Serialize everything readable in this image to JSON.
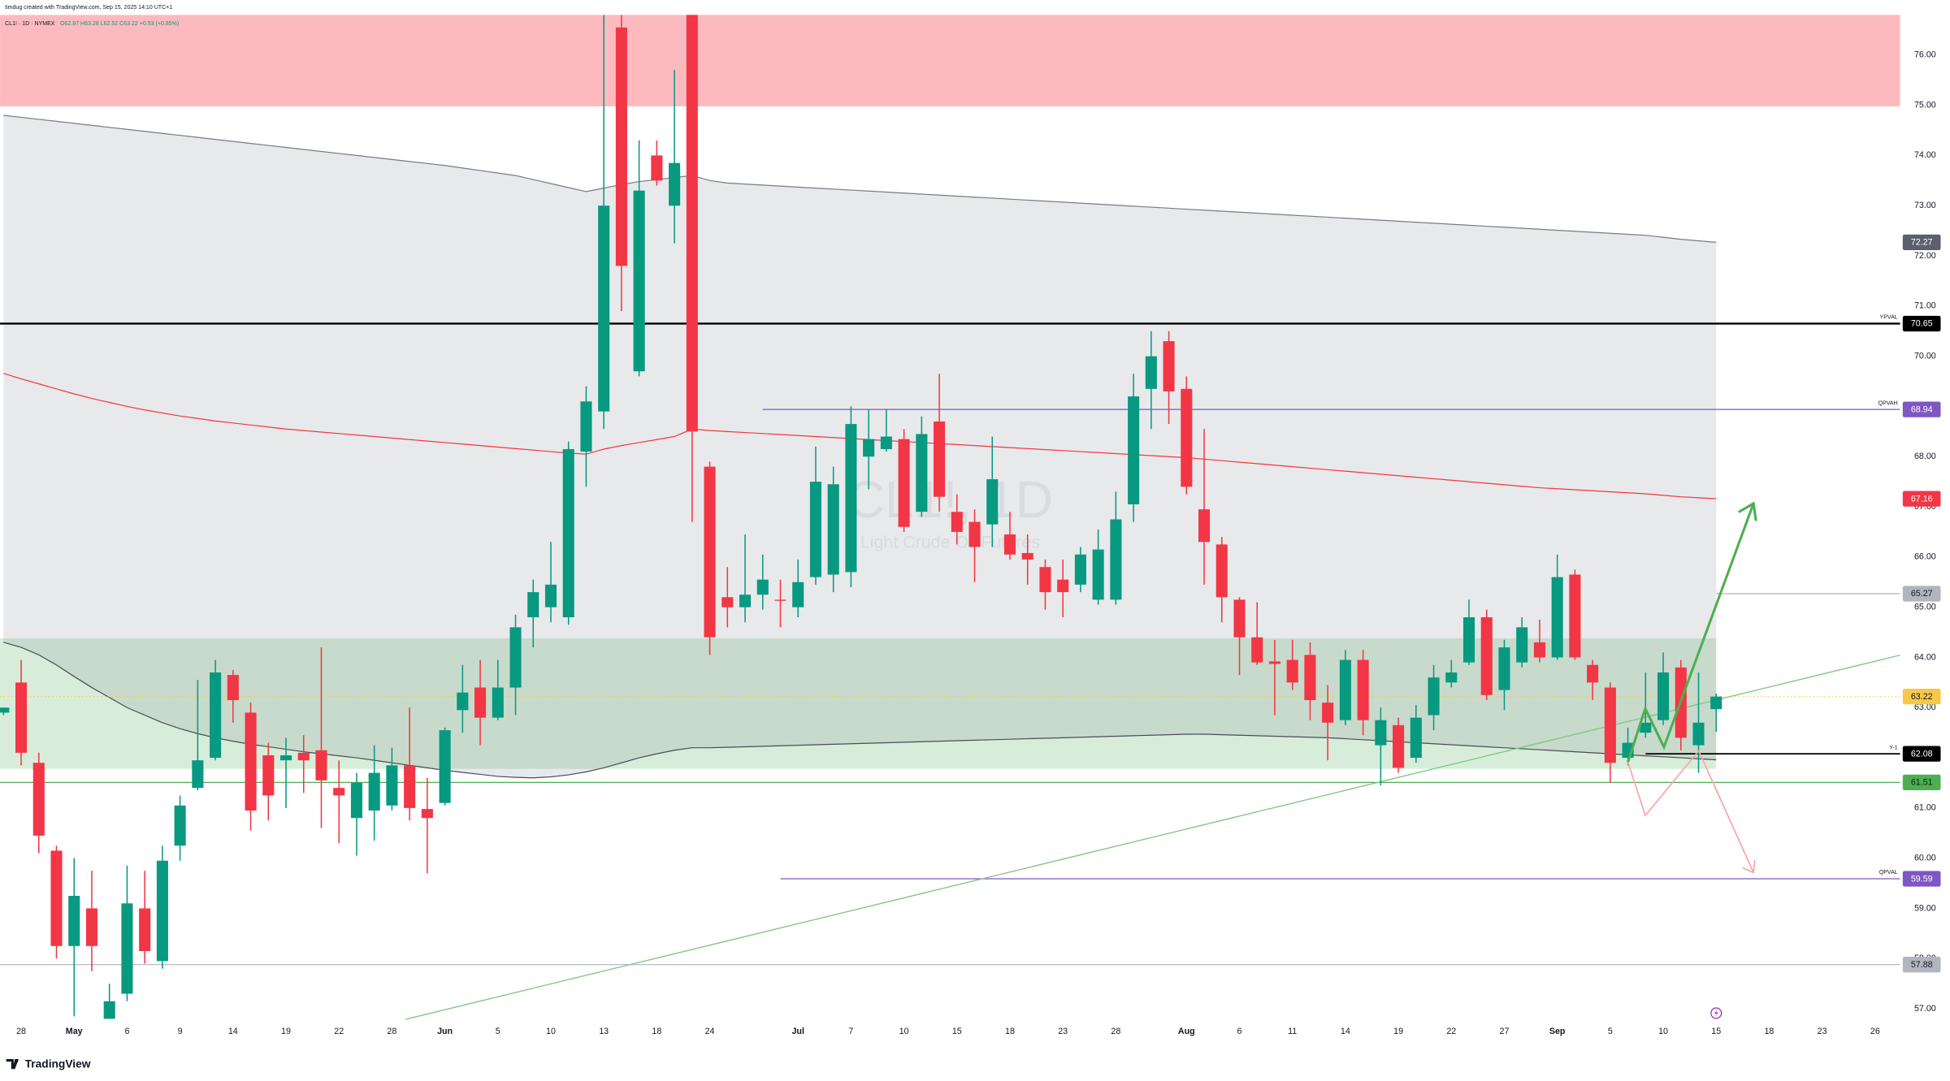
{
  "chart_data": {
    "type": "candlestick",
    "attribution": "timdug created with TradingView.com, Sep 15, 2025 14:10 UTC+1",
    "title": "CL1! · 1D · NYMEX",
    "ohlc_text": "O62.97 H63.28 L62.52 C63.22 +0.53 (+0.85%)",
    "watermark": "CL1!, 1D",
    "watermark_description": "Light Crude Oil Futures",
    "brand": "TradingView",
    "up_color": "#089981",
    "down_color": "#f23645",
    "grid": false,
    "ylim": [
      56.74,
      76.8
    ],
    "yticks": [
      {
        "value": 57,
        "label": "57.00"
      },
      {
        "value": 58,
        "label": "58.00"
      },
      {
        "value": 59,
        "label": "59.00"
      },
      {
        "value": 60,
        "label": "60.00"
      },
      {
        "value": 61,
        "label": "61.00"
      },
      {
        "value": 62,
        "label": "62.00"
      },
      {
        "value": 63,
        "label": "63.00"
      },
      {
        "value": 64,
        "label": "64.00"
      },
      {
        "value": 65,
        "label": "65.00"
      },
      {
        "value": 66,
        "label": "66.00"
      },
      {
        "value": 67,
        "label": "67.00"
      },
      {
        "value": 68,
        "label": "68.00"
      },
      {
        "value": 69,
        "label": "69.00"
      },
      {
        "value": 70,
        "label": "70.00"
      },
      {
        "value": 71,
        "label": "71.00"
      },
      {
        "value": 72,
        "label": "72.00"
      },
      {
        "value": 73,
        "label": "73.00"
      },
      {
        "value": 74,
        "label": "74.00"
      },
      {
        "value": 75,
        "label": "75.00"
      },
      {
        "value": 76,
        "label": "76.00"
      }
    ],
    "categories": [
      null,
      "28",
      null,
      null,
      "May",
      null,
      null,
      "6",
      null,
      null,
      "9",
      null,
      null,
      "14",
      null,
      null,
      "19",
      null,
      null,
      "22",
      null,
      null,
      "28",
      null,
      null,
      "Jun",
      null,
      null,
      "5",
      null,
      null,
      "10",
      null,
      null,
      "13",
      null,
      null,
      "18",
      null,
      null,
      "24",
      null,
      null,
      null,
      null,
      "Jul",
      null,
      null,
      "7",
      null,
      null,
      "10",
      null,
      null,
      "15",
      null,
      null,
      "18",
      null,
      null,
      "23",
      null,
      null,
      "28",
      null,
      null,
      null,
      "Aug",
      null,
      null,
      "6",
      null,
      null,
      "11",
      null,
      null,
      "14",
      null,
      null,
      "19",
      null,
      null,
      "22",
      null,
      null,
      "27",
      null,
      null,
      "Sep",
      null,
      null,
      "5",
      null,
      null,
      "10",
      null,
      null,
      "15",
      null,
      null,
      "18",
      null,
      null,
      "23",
      null,
      null,
      "26"
    ],
    "open": [
      62.9,
      63.5,
      61.9,
      60.15,
      58.25,
      59.0,
      56.8,
      57.3,
      59.0,
      57.95,
      60.25,
      61.4,
      62.0,
      63.65,
      62.9,
      62.05,
      61.95,
      62.1,
      62.15,
      61.4,
      60.8,
      60.95,
      61.05,
      61.85,
      60.98,
      61.1,
      62.95,
      63.4,
      62.8,
      63.4,
      64.8,
      65.0,
      64.8,
      68.1,
      68.9,
      76.55,
      69.7,
      74.0,
      73.0,
      76.9,
      67.8,
      65.2,
      65.0,
      65.25,
      65.15,
      65.0,
      65.6,
      65.65,
      65.7,
      68.0,
      68.15,
      68.35,
      66.9,
      68.7,
      66.9,
      66.7,
      66.65,
      66.45,
      66.08,
      65.8,
      65.55,
      65.45,
      65.15,
      65.15,
      67.05,
      69.35,
      70.3,
      69.35,
      66.95,
      66.25,
      65.15,
      64.4,
      63.92,
      63.95,
      64.05,
      63.1,
      62.75,
      63.95,
      62.25,
      62.65,
      62.0,
      62.85,
      63.5,
      63.9,
      64.8,
      63.35,
      63.9,
      64.3,
      64.0,
      65.65,
      63.85,
      63.4,
      62.0,
      62.5,
      62.75,
      63.8,
      62.25,
      62.97,
      null,
      null,
      null,
      null,
      null,
      null,
      null,
      null,
      null
    ],
    "high": [
      63.0,
      63.95,
      62.1,
      60.25,
      60.0,
      59.75,
      57.5,
      59.85,
      59.75,
      60.25,
      61.25,
      63.55,
      63.95,
      63.75,
      63.1,
      62.3,
      62.4,
      62.45,
      64.2,
      61.95,
      61.7,
      62.25,
      62.2,
      63.0,
      61.6,
      62.6,
      63.85,
      63.95,
      63.95,
      64.85,
      65.55,
      66.3,
      68.3,
      69.4,
      76.8,
      76.8,
      74.3,
      74.3,
      75.7,
      77.2,
      67.9,
      65.8,
      66.45,
      66.05,
      65.55,
      65.95,
      68.2,
      67.8,
      69.0,
      68.95,
      68.95,
      68.55,
      68.8,
      69.65,
      67.25,
      66.95,
      68.4,
      66.9,
      66.45,
      65.95,
      65.95,
      66.2,
      66.55,
      67.3,
      69.65,
      70.5,
      70.5,
      69.6,
      68.55,
      66.4,
      65.2,
      65.1,
      64.35,
      64.35,
      64.3,
      63.45,
      64.15,
      64.15,
      63.0,
      62.8,
      63.05,
      63.85,
      63.95,
      65.15,
      64.95,
      64.35,
      64.8,
      64.75,
      66.05,
      65.75,
      63.95,
      63.5,
      62.6,
      63.7,
      64.1,
      63.95,
      63.7,
      63.28,
      null,
      null,
      null,
      null,
      null,
      null,
      null,
      null,
      null
    ],
    "low": [
      62.85,
      61.85,
      60.1,
      58.0,
      56.85,
      57.75,
      56.8,
      57.15,
      57.9,
      57.8,
      59.95,
      61.35,
      61.95,
      62.7,
      60.55,
      60.75,
      61.0,
      61.3,
      60.6,
      60.3,
      60.05,
      60.35,
      60.95,
      60.75,
      59.7,
      61.05,
      62.5,
      62.25,
      62.75,
      62.85,
      64.2,
      64.7,
      64.65,
      67.4,
      68.55,
      70.9,
      69.6,
      73.4,
      72.25,
      66.7,
      64.05,
      64.6,
      64.7,
      64.95,
      64.6,
      64.8,
      65.45,
      65.3,
      65.4,
      67.35,
      68.1,
      66.5,
      66.8,
      66.9,
      66.25,
      65.5,
      66.2,
      65.95,
      65.45,
      64.95,
      64.8,
      65.3,
      65.05,
      65.05,
      66.7,
      68.55,
      68.65,
      67.25,
      65.45,
      64.7,
      63.65,
      63.85,
      62.85,
      63.35,
      62.75,
      61.95,
      62.65,
      62.45,
      61.45,
      61.7,
      61.9,
      62.55,
      63.4,
      63.85,
      63.15,
      62.95,
      63.8,
      63.9,
      63.95,
      63.95,
      63.15,
      61.5,
      61.85,
      62.4,
      62.65,
      62.15,
      61.7,
      62.52,
      null,
      null,
      null,
      null,
      null,
      null,
      null,
      null,
      null
    ],
    "close": [
      63.0,
      62.1,
      60.45,
      58.25,
      59.25,
      58.25,
      57.15,
      59.1,
      58.15,
      59.95,
      61.05,
      61.95,
      63.7,
      63.15,
      60.95,
      61.25,
      62.05,
      61.95,
      61.55,
      61.25,
      61.5,
      61.7,
      61.85,
      61.0,
      60.8,
      62.55,
      63.3,
      62.8,
      63.4,
      64.6,
      65.3,
      65.45,
      68.15,
      69.1,
      73.0,
      71.8,
      73.3,
      73.5,
      73.85,
      68.5,
      64.4,
      65.0,
      65.25,
      65.55,
      65.13,
      65.5,
      67.5,
      67.45,
      68.65,
      68.35,
      68.4,
      66.6,
      68.45,
      67.2,
      66.5,
      66.2,
      67.55,
      66.05,
      65.95,
      65.3,
      65.3,
      66.05,
      66.15,
      66.75,
      69.2,
      70.0,
      69.3,
      67.4,
      66.3,
      65.2,
      64.4,
      63.9,
      63.87,
      63.5,
      63.15,
      62.7,
      63.95,
      62.75,
      62.75,
      61.8,
      62.8,
      63.6,
      63.7,
      64.8,
      63.25,
      64.2,
      64.6,
      64.0,
      65.6,
      64.0,
      63.5,
      61.9,
      62.3,
      62.7,
      63.7,
      62.4,
      62.7,
      63.22,
      null,
      null,
      null,
      null,
      null,
      null,
      null,
      null,
      null
    ],
    "band": {
      "fill": "rgba(120,123,134,0.17)",
      "upper": {
        "color": "#787b86",
        "values": [
          74.8,
          74.76,
          74.72,
          74.68,
          74.64,
          74.6,
          74.56,
          74.52,
          74.48,
          74.44,
          74.4,
          74.36,
          74.32,
          74.28,
          74.24,
          74.2,
          74.16,
          74.12,
          74.08,
          74.04,
          74.0,
          73.96,
          73.92,
          73.88,
          73.84,
          73.8,
          73.75,
          73.7,
          73.65,
          73.6,
          73.52,
          73.44,
          73.36,
          73.28,
          73.35,
          73.42,
          73.48,
          73.52,
          73.56,
          73.6,
          73.5,
          73.45,
          73.43,
          73.41,
          73.39,
          73.37,
          73.35,
          73.33,
          73.31,
          73.29,
          73.27,
          73.25,
          73.23,
          73.21,
          73.19,
          73.17,
          73.15,
          73.13,
          73.11,
          73.09,
          73.07,
          73.05,
          73.03,
          73.01,
          72.99,
          72.97,
          72.95,
          72.93,
          72.91,
          72.89,
          72.87,
          72.85,
          72.83,
          72.81,
          72.79,
          72.77,
          72.75,
          72.73,
          72.71,
          72.69,
          72.67,
          72.65,
          72.63,
          72.61,
          72.59,
          72.57,
          72.55,
          72.53,
          72.51,
          72.49,
          72.47,
          72.45,
          72.43,
          72.41,
          72.37,
          72.33,
          72.3,
          72.27,
          null,
          null,
          null,
          null,
          null,
          null,
          null,
          null,
          null
        ]
      },
      "lower": {
        "color": "#4a4d57",
        "values": [
          64.3,
          64.2,
          64.05,
          63.85,
          63.62,
          63.4,
          63.2,
          63.0,
          62.85,
          62.7,
          62.58,
          62.48,
          62.4,
          62.33,
          62.27,
          62.22,
          62.17,
          62.12,
          62.08,
          62.04,
          62.0,
          61.95,
          61.9,
          61.85,
          61.8,
          61.75,
          61.71,
          61.67,
          61.63,
          61.61,
          61.6,
          61.62,
          61.66,
          61.72,
          61.8,
          61.9,
          62.0,
          62.08,
          62.15,
          62.2,
          62.2,
          62.21,
          62.22,
          62.23,
          62.24,
          62.25,
          62.26,
          62.27,
          62.28,
          62.29,
          62.3,
          62.31,
          62.32,
          62.33,
          62.34,
          62.35,
          62.36,
          62.37,
          62.38,
          62.39,
          62.4,
          62.41,
          62.42,
          62.43,
          62.44,
          62.45,
          62.46,
          62.47,
          62.47,
          62.46,
          62.45,
          62.44,
          62.43,
          62.42,
          62.41,
          62.4,
          62.38,
          62.36,
          62.34,
          62.32,
          62.3,
          62.28,
          62.26,
          62.24,
          62.22,
          62.2,
          62.18,
          62.16,
          62.14,
          62.12,
          62.1,
          62.08,
          62.06,
          62.04,
          62.02,
          62.0,
          61.98,
          61.96,
          null,
          null,
          null,
          null,
          null,
          null,
          null,
          null,
          null
        ]
      }
    },
    "vwap": {
      "color": "#f23645",
      "values": [
        69.66,
        69.55,
        69.45,
        69.35,
        69.25,
        69.16,
        69.08,
        69.0,
        68.93,
        68.87,
        68.81,
        68.76,
        68.71,
        68.67,
        68.63,
        68.59,
        68.55,
        68.52,
        68.49,
        68.46,
        68.43,
        68.4,
        68.37,
        68.34,
        68.31,
        68.28,
        68.25,
        68.22,
        68.19,
        68.16,
        68.13,
        68.1,
        68.07,
        68.05,
        68.15,
        68.22,
        68.28,
        68.34,
        68.4,
        68.55,
        68.52,
        68.5,
        68.48,
        68.46,
        68.44,
        68.42,
        68.4,
        68.38,
        68.36,
        68.34,
        68.32,
        68.3,
        68.28,
        68.26,
        68.24,
        68.22,
        68.2,
        68.18,
        68.16,
        68.14,
        68.12,
        68.1,
        68.08,
        68.06,
        68.04,
        68.02,
        68.0,
        67.98,
        67.95,
        67.92,
        67.89,
        67.86,
        67.83,
        67.8,
        67.77,
        67.74,
        67.71,
        67.68,
        67.65,
        67.62,
        67.59,
        67.56,
        67.53,
        67.5,
        67.47,
        67.44,
        67.41,
        67.38,
        67.36,
        67.34,
        67.32,
        67.3,
        67.28,
        67.26,
        67.23,
        67.2,
        67.18,
        67.16,
        null,
        null,
        null,
        null,
        null,
        null,
        null,
        null,
        null
      ]
    },
    "zones": [
      {
        "from": 74.98,
        "to": 77.2,
        "color": "#fcbabf"
      },
      {
        "from": 61.78,
        "to": 64.38,
        "color": "rgba(76,175,80,0.22)"
      }
    ],
    "levels": [
      {
        "value": 72.27,
        "color": "#5d606b",
        "text_color": "#ffffff"
      },
      {
        "value": 70.65,
        "name": "YPVAL",
        "color": "#000000",
        "text_color": "#ffffff",
        "line": "solid"
      },
      {
        "value": 68.94,
        "name": "QPVAH",
        "color": "#7e57c2",
        "text_color": "#ffffff",
        "line": "solid"
      },
      {
        "value": 67.16,
        "color": "#f23645",
        "text_color": "#ffffff"
      },
      {
        "value": 65.27,
        "color": "#b2b5be",
        "text_color": "#131722",
        "line": "solid"
      },
      {
        "value": 63.22,
        "color": "#f7c948",
        "text_color": "#131722",
        "line": "dotted"
      },
      {
        "value": 62.08,
        "name": "Y-1",
        "color": "#000000",
        "text_color": "#ffffff",
        "line": "solid"
      },
      {
        "value": 61.51,
        "color": "#4caf50",
        "text_color": "#131722",
        "line": "solid"
      },
      {
        "value": 59.59,
        "name": "QPVAL",
        "color": "#7e57c2",
        "text_color": "#ffffff",
        "line": "solid"
      },
      {
        "value": 57.88,
        "color": "#b2b5be",
        "text_color": "#131722",
        "line": "solid"
      }
    ]
  }
}
